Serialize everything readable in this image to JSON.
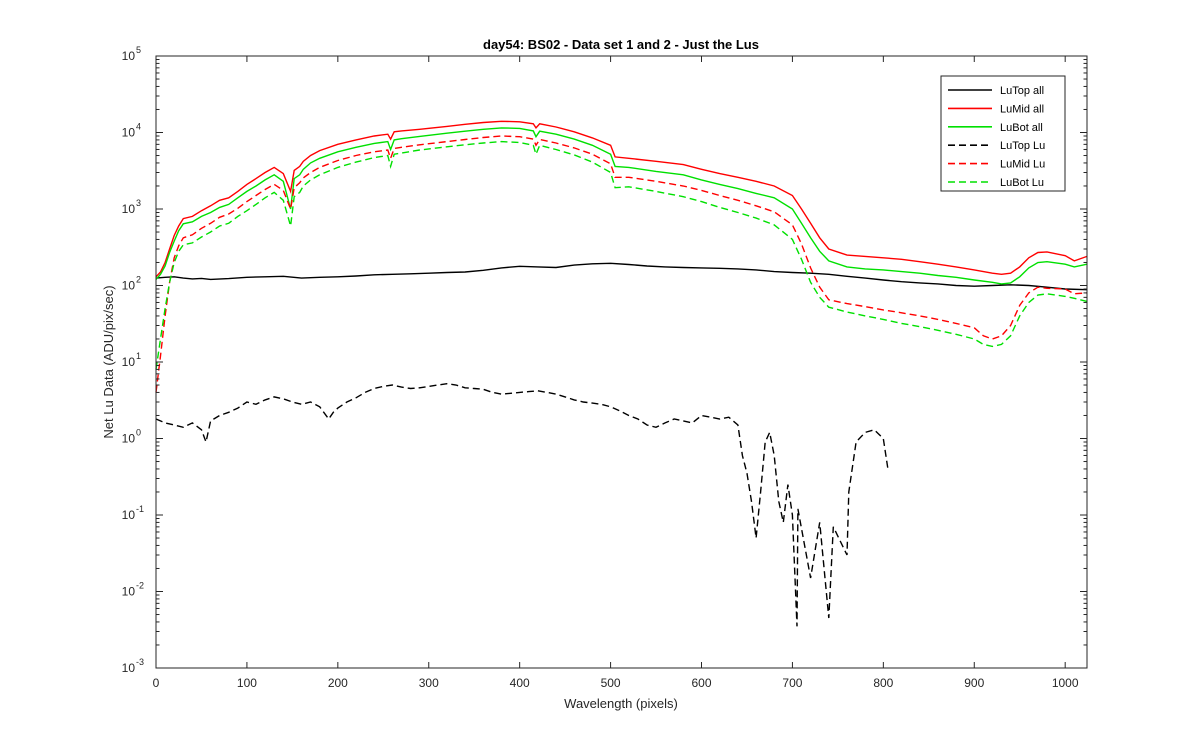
{
  "chart_data": {
    "type": "line",
    "title": "day54: BS02 - Data set 1 and 2 - Just the Lus",
    "xlabel": "Wavelength (pixels)",
    "ylabel": "Net Lu Data (ADU/pix/sec)",
    "xlim": [
      0,
      1024
    ],
    "ylim": [
      0.001,
      100000
    ],
    "yscale": "log",
    "grid": false,
    "legend_position": "top-right",
    "x_ticks": [
      0,
      100,
      200,
      300,
      400,
      500,
      600,
      700,
      800,
      900,
      1000
    ],
    "x_tick_labels": [
      "0",
      "100",
      "200",
      "300",
      "400",
      "500",
      "600",
      "700",
      "800",
      "900",
      "1000"
    ],
    "y_ticks": [
      {
        "value": 0.001,
        "base": "10",
        "exp": "-3"
      },
      {
        "value": 0.01,
        "base": "10",
        "exp": "-2"
      },
      {
        "value": 0.1,
        "base": "10",
        "exp": "-1"
      },
      {
        "value": 1,
        "base": "10",
        "exp": "0"
      },
      {
        "value": 10,
        "base": "10",
        "exp": "1"
      },
      {
        "value": 100,
        "base": "10",
        "exp": "2"
      },
      {
        "value": 1000,
        "base": "10",
        "exp": "3"
      },
      {
        "value": 10000,
        "base": "10",
        "exp": "4"
      },
      {
        "value": 100000,
        "base": "10",
        "exp": "5"
      }
    ],
    "series": [
      {
        "name": "LuTop  all",
        "color": "#000000",
        "dash": "solid",
        "x": [
          0,
          10,
          20,
          30,
          40,
          50,
          60,
          80,
          100,
          120,
          140,
          160,
          180,
          200,
          220,
          240,
          260,
          280,
          300,
          320,
          340,
          360,
          380,
          400,
          420,
          440,
          460,
          480,
          500,
          520,
          540,
          560,
          580,
          600,
          620,
          640,
          660,
          680,
          700,
          720,
          740,
          760,
          780,
          800,
          820,
          840,
          860,
          880,
          900,
          920,
          940,
          960,
          980,
          1000,
          1024
        ],
        "y": [
          125,
          128,
          130,
          125,
          122,
          124,
          120,
          123,
          128,
          130,
          132,
          125,
          128,
          130,
          133,
          138,
          140,
          142,
          145,
          148,
          150,
          158,
          170,
          178,
          175,
          172,
          185,
          192,
          195,
          188,
          180,
          175,
          172,
          170,
          168,
          165,
          160,
          152,
          148,
          145,
          140,
          132,
          125,
          118,
          112,
          108,
          105,
          100,
          98,
          100,
          102,
          100,
          95,
          90,
          88
        ]
      },
      {
        "name": "LuMid  all",
        "color": "#ff0000",
        "dash": "solid",
        "x": [
          0,
          5,
          10,
          15,
          20,
          25,
          30,
          40,
          50,
          60,
          70,
          80,
          90,
          100,
          110,
          120,
          130,
          140,
          148,
          152,
          158,
          162,
          170,
          180,
          200,
          220,
          240,
          255,
          258,
          262,
          270,
          290,
          320,
          340,
          360,
          380,
          400,
          415,
          418,
          422,
          440,
          460,
          480,
          500,
          505,
          520,
          550,
          580,
          600,
          620,
          640,
          660,
          680,
          700,
          710,
          720,
          730,
          740,
          760,
          780,
          800,
          820,
          840,
          860,
          880,
          900,
          920,
          930,
          940,
          950,
          960,
          970,
          980,
          1000,
          1010,
          1024
        ],
        "y": [
          130,
          150,
          200,
          300,
          450,
          600,
          750,
          800,
          950,
          1100,
          1300,
          1400,
          1700,
          2100,
          2500,
          3000,
          3500,
          2900,
          1700,
          3200,
          3600,
          4200,
          5000,
          5800,
          7000,
          8000,
          9000,
          9500,
          8200,
          10200,
          10500,
          11000,
          12000,
          12800,
          13500,
          14000,
          13800,
          13000,
          11500,
          13000,
          11800,
          10200,
          8500,
          6800,
          4800,
          4600,
          4200,
          3800,
          3300,
          2900,
          2600,
          2300,
          2000,
          1500,
          1000,
          650,
          420,
          300,
          250,
          240,
          230,
          220,
          205,
          190,
          175,
          160,
          145,
          140,
          145,
          175,
          230,
          270,
          275,
          245,
          210,
          240
        ]
      },
      {
        "name": "LuBot  all",
        "color": "#00e000",
        "dash": "solid",
        "x": [
          0,
          5,
          10,
          15,
          20,
          25,
          30,
          40,
          50,
          60,
          70,
          80,
          90,
          100,
          110,
          120,
          130,
          140,
          148,
          152,
          158,
          162,
          170,
          180,
          200,
          220,
          240,
          255,
          258,
          262,
          270,
          290,
          320,
          340,
          360,
          380,
          400,
          415,
          418,
          422,
          440,
          460,
          480,
          500,
          505,
          520,
          550,
          580,
          600,
          620,
          640,
          660,
          680,
          700,
          710,
          720,
          730,
          740,
          760,
          780,
          800,
          820,
          840,
          860,
          880,
          900,
          920,
          930,
          940,
          950,
          960,
          970,
          980,
          1000,
          1010,
          1024
        ],
        "y": [
          120,
          140,
          180,
          270,
          380,
          520,
          640,
          680,
          800,
          900,
          1050,
          1150,
          1400,
          1700,
          2000,
          2400,
          2800,
          2300,
          1000,
          2500,
          2800,
          3300,
          4000,
          4600,
          5600,
          6400,
          7200,
          7600,
          6000,
          8000,
          8300,
          8900,
          9800,
          10400,
          11000,
          11500,
          11300,
          10500,
          8800,
          10400,
          9500,
          8200,
          6800,
          5200,
          3600,
          3500,
          3100,
          2800,
          2400,
          2100,
          1850,
          1600,
          1400,
          1000,
          650,
          420,
          280,
          210,
          175,
          165,
          160,
          152,
          145,
          135,
          128,
          118,
          110,
          105,
          108,
          130,
          170,
          200,
          205,
          190,
          175,
          190
        ]
      },
      {
        "name": "LuTop  Lu",
        "color": "#000000",
        "dash": "dashed",
        "x": [
          0,
          10,
          20,
          30,
          40,
          50,
          55,
          60,
          70,
          80,
          90,
          100,
          110,
          120,
          130,
          140,
          150,
          160,
          170,
          180,
          190,
          195,
          200,
          210,
          220,
          230,
          240,
          250,
          260,
          270,
          280,
          290,
          300,
          310,
          320,
          330,
          340,
          350,
          360,
          370,
          380,
          390,
          400,
          410,
          420,
          430,
          440,
          450,
          460,
          470,
          480,
          490,
          500,
          510,
          520,
          530,
          540,
          550,
          560,
          570,
          580,
          590,
          600,
          610,
          620,
          630,
          640,
          645,
          650,
          655,
          660,
          665,
          670,
          675,
          680,
          685,
          690,
          695,
          700,
          705,
          706,
          720,
          730,
          740,
          745,
          760,
          762,
          770,
          780,
          790,
          800,
          805
        ],
        "y": [
          1.8,
          1.6,
          1.5,
          1.4,
          1.6,
          1.3,
          0.9,
          1.7,
          2.0,
          2.2,
          2.5,
          3.0,
          2.8,
          3.2,
          3.5,
          3.3,
          3.0,
          2.8,
          3.0,
          2.6,
          1.8,
          2.2,
          2.5,
          3.0,
          3.4,
          4.0,
          4.5,
          4.8,
          5.0,
          4.7,
          4.5,
          4.6,
          4.8,
          5.0,
          5.2,
          5.0,
          4.6,
          4.5,
          4.4,
          4.0,
          3.8,
          3.9,
          4.0,
          4.1,
          4.2,
          4.0,
          3.8,
          3.5,
          3.2,
          3.0,
          2.9,
          2.8,
          2.6,
          2.3,
          2.0,
          1.8,
          1.5,
          1.4,
          1.6,
          1.8,
          1.7,
          1.6,
          2.0,
          1.9,
          1.8,
          1.9,
          1.5,
          0.6,
          0.35,
          0.15,
          0.05,
          0.2,
          0.9,
          1.2,
          0.6,
          0.15,
          0.08,
          0.25,
          0.1,
          0.0035,
          0.12,
          0.015,
          0.08,
          0.0045,
          0.07,
          0.03,
          0.2,
          0.9,
          1.2,
          1.3,
          1.0,
          0.4
        ]
      },
      {
        "name": "LuMid  Lu",
        "color": "#ff0000",
        "dash": "dashed",
        "x": [
          0,
          5,
          10,
          15,
          20,
          25,
          30,
          40,
          50,
          60,
          70,
          80,
          90,
          100,
          110,
          120,
          130,
          140,
          148,
          152,
          158,
          162,
          170,
          180,
          200,
          220,
          240,
          255,
          258,
          262,
          270,
          290,
          320,
          340,
          360,
          380,
          400,
          415,
          418,
          422,
          440,
          460,
          480,
          500,
          505,
          520,
          550,
          580,
          600,
          620,
          640,
          660,
          680,
          700,
          710,
          720,
          730,
          740,
          760,
          780,
          800,
          820,
          840,
          860,
          880,
          900,
          910,
          920,
          930,
          940,
          950,
          960,
          970,
          980,
          1000,
          1010,
          1024
        ],
        "y": [
          4,
          12,
          40,
          110,
          230,
          330,
          420,
          460,
          560,
          650,
          780,
          860,
          1020,
          1250,
          1500,
          1800,
          2100,
          1750,
          1000,
          1900,
          2200,
          2550,
          3000,
          3500,
          4300,
          5000,
          5600,
          5900,
          4600,
          6200,
          6400,
          6900,
          7600,
          8100,
          8600,
          9000,
          8800,
          8200,
          6800,
          8100,
          7300,
          6300,
          5200,
          3900,
          2600,
          2600,
          2300,
          2000,
          1750,
          1500,
          1300,
          1100,
          920,
          620,
          350,
          170,
          95,
          65,
          58,
          53,
          48,
          44,
          40,
          36,
          32,
          28,
          22,
          20,
          22,
          30,
          55,
          80,
          95,
          92,
          90,
          78,
          80
        ]
      },
      {
        "name": "LuBot  Lu",
        "color": "#00e000",
        "dash": "dashed",
        "x": [
          0,
          5,
          10,
          15,
          20,
          25,
          30,
          40,
          50,
          60,
          70,
          80,
          90,
          100,
          110,
          120,
          130,
          140,
          148,
          152,
          158,
          162,
          170,
          180,
          200,
          220,
          240,
          255,
          258,
          262,
          270,
          290,
          320,
          340,
          360,
          380,
          400,
          415,
          418,
          422,
          440,
          460,
          480,
          500,
          505,
          520,
          550,
          580,
          600,
          620,
          640,
          660,
          680,
          700,
          710,
          720,
          730,
          740,
          760,
          780,
          800,
          820,
          840,
          860,
          880,
          900,
          910,
          920,
          930,
          940,
          950,
          960,
          970,
          980,
          1000,
          1010,
          1024
        ],
        "y": [
          8,
          20,
          50,
          110,
          200,
          280,
          340,
          360,
          430,
          500,
          600,
          650,
          800,
          950,
          1150,
          1400,
          1650,
          1300,
          600,
          1450,
          1650,
          2000,
          2400,
          2800,
          3500,
          4100,
          4700,
          5000,
          3600,
          5200,
          5400,
          5900,
          6500,
          6900,
          7300,
          7600,
          7400,
          6800,
          5200,
          6800,
          6000,
          5100,
          4100,
          3000,
          1900,
          1950,
          1700,
          1450,
          1250,
          1050,
          900,
          760,
          620,
          400,
          220,
          110,
          70,
          52,
          45,
          40,
          36,
          32,
          29,
          26,
          23,
          20,
          17,
          16,
          17,
          22,
          40,
          60,
          75,
          78,
          72,
          68,
          62
        ]
      }
    ]
  }
}
